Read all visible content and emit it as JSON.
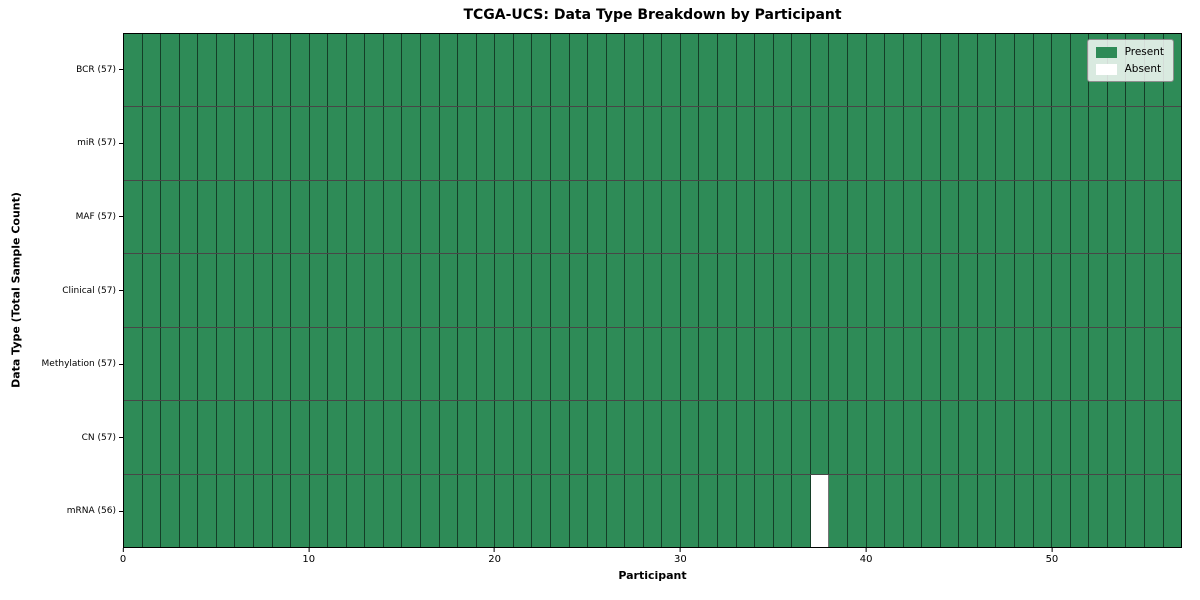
{
  "chart_data": {
    "type": "heatmap",
    "title": "TCGA-UCS: Data Type Breakdown by Participant",
    "xlabel": "Participant",
    "ylabel": "Data Type (Total Sample Count)",
    "n_participants": 57,
    "xlim": [
      0,
      57
    ],
    "x_ticks": [
      0,
      10,
      20,
      30,
      40,
      50
    ],
    "legend": {
      "present_label": "Present",
      "absent_label": "Absent",
      "position": "upper right"
    },
    "colors": {
      "present": "#2E8B57",
      "absent": "#FFFFFF",
      "cell_edge": "rgba(0,0,0,0.55)"
    },
    "rows": [
      {
        "label": "BCR (57)",
        "data_type": "BCR",
        "total_sample_count": 57,
        "absent_participants": []
      },
      {
        "label": "miR (57)",
        "data_type": "miR",
        "total_sample_count": 57,
        "absent_participants": []
      },
      {
        "label": "MAF (57)",
        "data_type": "MAF",
        "total_sample_count": 57,
        "absent_participants": []
      },
      {
        "label": "Clinical (57)",
        "data_type": "Clinical",
        "total_sample_count": 57,
        "absent_participants": []
      },
      {
        "label": "Methylation (57)",
        "data_type": "Methylation",
        "total_sample_count": 57,
        "absent_participants": []
      },
      {
        "label": "CN (57)",
        "data_type": "CN",
        "total_sample_count": 57,
        "absent_participants": []
      },
      {
        "label": "mRNA (56)",
        "data_type": "mRNA",
        "total_sample_count": 56,
        "absent_participants": [
          37
        ]
      }
    ]
  }
}
